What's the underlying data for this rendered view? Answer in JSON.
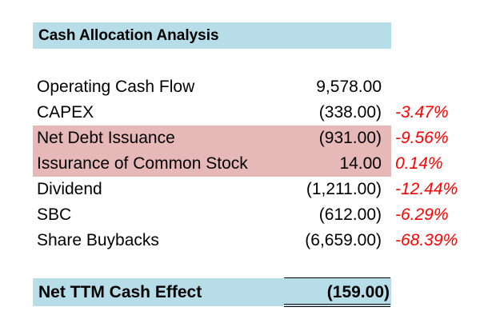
{
  "title": "Cash Allocation Analysis",
  "rows": [
    {
      "label": "Operating Cash Flow",
      "value": "9,578.00",
      "pct": ""
    },
    {
      "label": "CAPEX",
      "value": "(338.00)",
      "pct": "-3.47%"
    },
    {
      "label": "Net Debt Issuance",
      "value": "(931.00)",
      "pct": "-9.56%",
      "highlight": true
    },
    {
      "label": "Issurance of Common Stock",
      "value": "14.00",
      "pct": "0.14%",
      "highlight": true
    },
    {
      "label": "Dividend",
      "value": "(1,211.00)",
      "pct": "-12.44%"
    },
    {
      "label": "SBC",
      "value": "(612.00)",
      "pct": "-6.29%"
    },
    {
      "label": "Share Buybacks",
      "value": "(6,659.00)",
      "pct": "-68.39%"
    }
  ],
  "total": {
    "label": "Net TTM Cash Effect",
    "value": "(159.00)"
  },
  "colors": {
    "header_band": "#b7dde8",
    "highlight_row": "#e6b8b8",
    "percent_text": "#ff0000"
  }
}
